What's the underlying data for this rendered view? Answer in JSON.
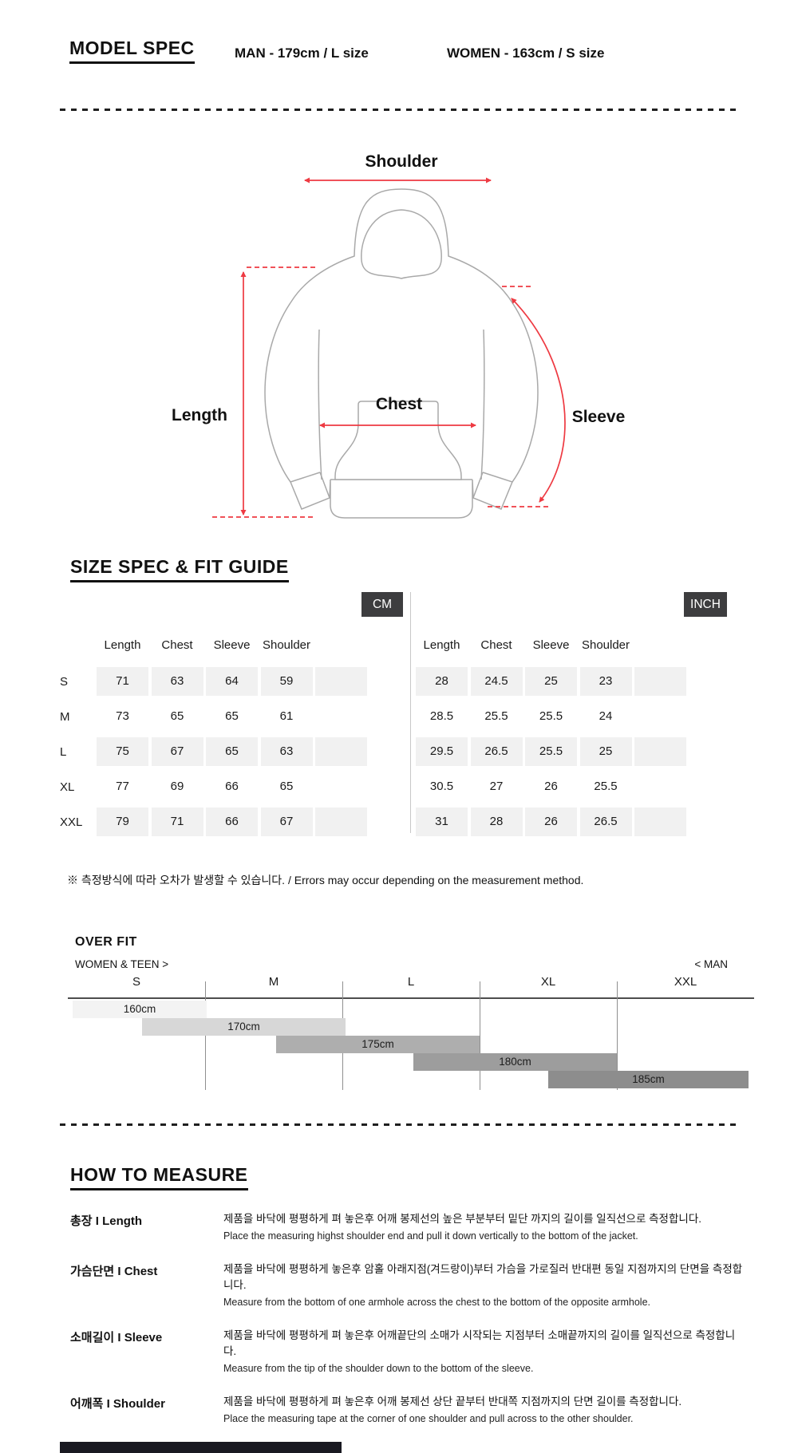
{
  "model_spec": {
    "title": "MODEL SPEC",
    "man": "MAN - 179cm / L size",
    "women": "WOMEN - 163cm / S size"
  },
  "diagram": {
    "shoulder": "Shoulder",
    "length": "Length",
    "chest": "Chest",
    "sleeve": "Sleeve"
  },
  "colors": {
    "measure_arrow_red": "#ee3a42",
    "garment_outline_gray": "#a9a9a9",
    "table_cell_gray": "#f1f1f1",
    "unit_badge_dark": "#3d3d3f"
  },
  "size_spec": {
    "title": "SIZE SPEC  &  FIT GUIDE",
    "unit_cm": "CM",
    "unit_inch": "INCH",
    "columns": [
      "Length",
      "Chest",
      "Sleeve",
      "Shoulder"
    ],
    "sizes": [
      "S",
      "M",
      "L",
      "XL",
      "XXL"
    ],
    "cm_rows": [
      [
        "71",
        "63",
        "64",
        "59"
      ],
      [
        "73",
        "65",
        "65",
        "61"
      ],
      [
        "75",
        "67",
        "65",
        "63"
      ],
      [
        "77",
        "69",
        "66",
        "65"
      ],
      [
        "79",
        "71",
        "66",
        "67"
      ]
    ],
    "inch_rows": [
      [
        "28",
        "24.5",
        "25",
        "23"
      ],
      [
        "28.5",
        "25.5",
        "25.5",
        "24"
      ],
      [
        "29.5",
        "26.5",
        "25.5",
        "25"
      ],
      [
        "30.5",
        "27",
        "26",
        "25.5"
      ],
      [
        "31",
        "28",
        "26",
        "26.5"
      ]
    ],
    "note": "※ 측정방식에 따라 오차가 발생할 수 있습니다. / Errors may occur depending on the measurement method."
  },
  "over_fit": {
    "title": "OVER FIT",
    "left_label": "WOMEN & TEEN >",
    "right_label": "< MAN",
    "sizes": [
      "S",
      "M",
      "L",
      "XL",
      "XXL"
    ],
    "bars": [
      {
        "label": "160cm",
        "start_seg": 0.035,
        "end_seg": 1.01,
        "color": "#f3f3f3"
      },
      {
        "label": "170cm",
        "start_seg": 0.54,
        "end_seg": 2.02,
        "color": "#d7d7d7"
      },
      {
        "label": "175cm",
        "start_seg": 1.52,
        "end_seg": 3.0,
        "color": "#aeaeae"
      },
      {
        "label": "180cm",
        "start_seg": 2.52,
        "end_seg": 4.0,
        "color": "#9d9d9d"
      },
      {
        "label": "185cm",
        "start_seg": 3.5,
        "end_seg": 4.96,
        "color": "#8d8d8d"
      }
    ]
  },
  "chart_data": {
    "type": "bar",
    "variant": "overlapping-height-ranges",
    "title": "OVER FIT",
    "categories": [
      "S",
      "M",
      "L",
      "XL",
      "XXL"
    ],
    "series": [
      {
        "name": "160cm",
        "span_in_size_units": [
          0.035,
          1.01
        ]
      },
      {
        "name": "170cm",
        "span_in_size_units": [
          0.54,
          2.02
        ]
      },
      {
        "name": "175cm",
        "span_in_size_units": [
          1.52,
          3.0
        ]
      },
      {
        "name": "180cm",
        "span_in_size_units": [
          2.52,
          4.0
        ]
      },
      {
        "name": "185cm",
        "span_in_size_units": [
          3.5,
          4.96
        ]
      }
    ],
    "legend_position": "none",
    "grid": "vertical-size-boundaries"
  },
  "how_to_measure": {
    "title": "HOW TO MEASURE",
    "items": [
      {
        "label": "총장 I Length",
        "kr": "제품을 바닥에 평평하게 펴 놓은후 어깨 봉제선의 높은 부분부터 밑단 까지의 길이를 일직선으로 측정합니다.",
        "en": "Place the measuring highst shoulder end and pull it down vertically to the bottom of the jacket."
      },
      {
        "label": "가슴단면 I Chest",
        "kr": "제품을 바닥에 평평하게 놓은후 암홀 아래지점(겨드랑이)부터 가슴을 가로질러 반대편 동일 지점까지의 단면을 측정합니다.",
        "en": "Measure from the bottom of one armhole across the chest to the bottom of the opposite armhole."
      },
      {
        "label": "소매길이 I Sleeve",
        "kr": "제품을 바닥에 평평하게 펴 놓은후 어깨끝단의 소매가 시작되는 지점부터 소매끝까지의 길이를 일직선으로 측정합니다.",
        "en": "Measure from the tip of the shoulder down to the bottom of the sleeve."
      },
      {
        "label": "어깨폭 I Shoulder",
        "kr": "제품을 바닥에 평평하게 펴 놓은후 어깨 봉제선 상단 끝부터 반대쪽 지점까지의 단면 길이를 측정합니다.",
        "en": "Place the measuring tape at the corner of one shoulder and pull across to the other shoulder."
      }
    ]
  }
}
